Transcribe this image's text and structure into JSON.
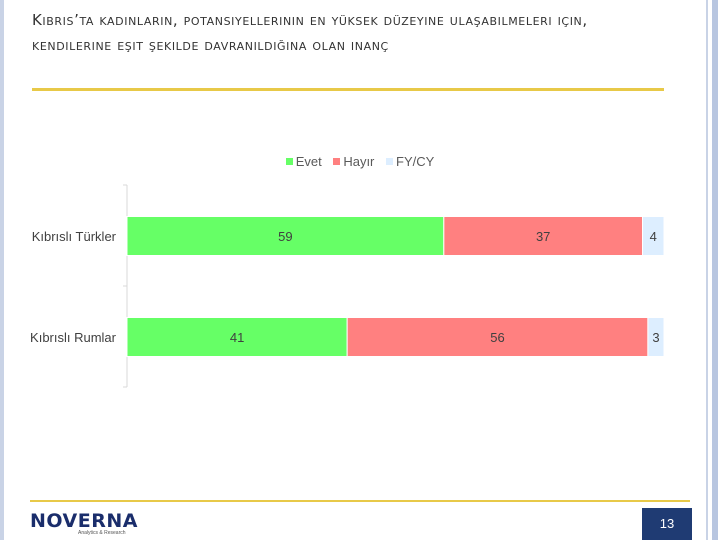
{
  "title": "Kıbrıs’ta kadınların, potansiyellerinin en yüksek düzeyine ulaşabilmeleri için, kendilerine eşit şekilde davranıldığına olan inanç",
  "colors": {
    "evet": "#66ff66",
    "hayir": "#ff8080",
    "fycy": "#ddeeff",
    "accent": "#e8c948",
    "page_badge": "#1f3b73"
  },
  "logo": {
    "name": "NOVERNA",
    "tagline": "Analytics & Research"
  },
  "page_number": "13",
  "chart_data": {
    "type": "bar",
    "orientation": "horizontal",
    "stacked": true,
    "categories": [
      "Kıbrıslı Türkler",
      "Kıbrıslı Rumlar"
    ],
    "series": [
      {
        "name": "Evet",
        "values": [
          59,
          41
        ],
        "labels": [
          "59",
          "41"
        ]
      },
      {
        "name": "Hayır",
        "values": [
          37,
          56
        ],
        "labels": [
          "37",
          "56"
        ]
      },
      {
        "name": "FY/CY",
        "values": [
          4,
          3
        ],
        "labels": [
          "4",
          "3"
        ]
      }
    ],
    "xlim": [
      0,
      100
    ],
    "legend": "top-center",
    "grid": false
  }
}
